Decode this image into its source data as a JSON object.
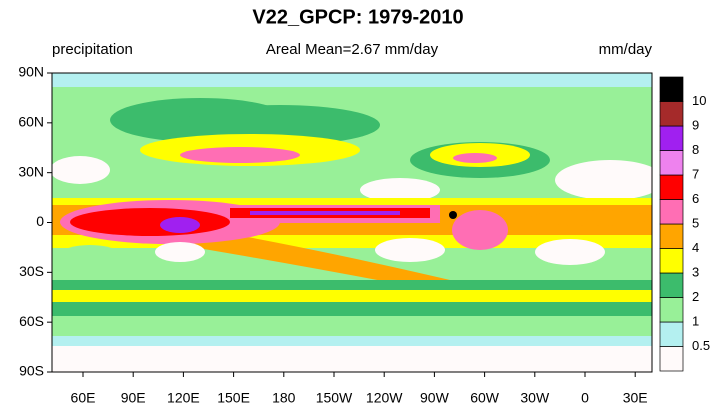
{
  "header": {
    "title": "V22_GPCP: 1979-2010",
    "left_label": "precipitation",
    "center_label": "Areal Mean=2.67 mm/day",
    "right_label": "mm/day"
  },
  "lat_ticks": [
    "90N",
    "60N",
    "30N",
    "0",
    "30S",
    "60S",
    "90S"
  ],
  "lon_ticks": [
    "60E",
    "90E",
    "120E",
    "150E",
    "180",
    "150W",
    "120W",
    "90W",
    "60W",
    "30W",
    "0",
    "30E"
  ],
  "colorbar": {
    "levels": [
      0.5,
      1,
      2,
      3,
      4,
      5,
      6,
      7,
      8,
      9,
      10
    ],
    "colors": [
      "#fffafa",
      "#b4f0f0",
      "#98f098",
      "#3cbc6c",
      "#ffff00",
      "#ffa500",
      "#ff6eb4",
      "#ff0000",
      "#ee82ee",
      "#a020f0",
      "#a52a2a",
      "#000000"
    ]
  }
}
